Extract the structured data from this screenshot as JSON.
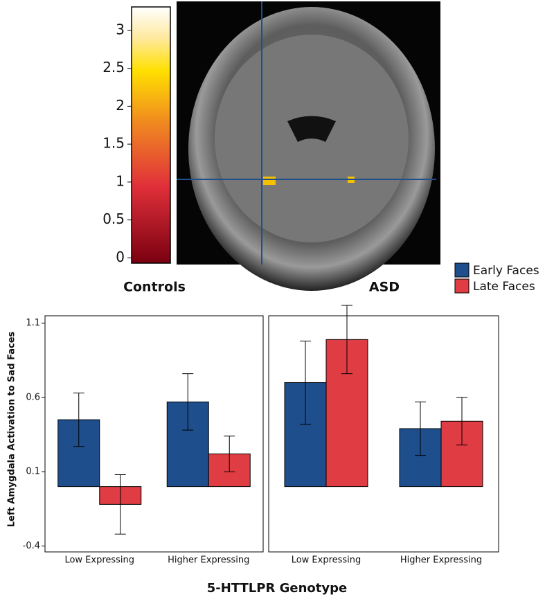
{
  "colorbar": {
    "lim": [
      -0.07,
      3.31
    ],
    "ticks": [
      0,
      0.5,
      1,
      1.5,
      2,
      2.5,
      3
    ]
  },
  "chart_data": [
    {
      "type": "bar",
      "title": "Controls",
      "ylabel": "Left Amygdala Activation to Sad Faces",
      "xlabel": "5-HTTLPR Genotype",
      "categories": [
        "Low Expressing",
        "Higher Expressing"
      ],
      "series": [
        {
          "name": "Early Faces",
          "color": "#1f4e8c",
          "values": [
            0.45,
            0.57
          ],
          "errors": [
            0.18,
            0.19
          ]
        },
        {
          "name": "Late Faces",
          "color": "#e03c44",
          "values": [
            -0.12,
            0.22
          ],
          "errors": [
            0.2,
            0.12
          ]
        }
      ],
      "ylim": [
        -0.44,
        1.15
      ],
      "yticks": [
        -0.4,
        0.1,
        0.6,
        1.1
      ],
      "legend": "top-right"
    },
    {
      "type": "bar",
      "title": "ASD",
      "categories": [
        "Low Expressing",
        "Higher Expressing"
      ],
      "series": [
        {
          "name": "Early Faces",
          "color": "#1f4e8c",
          "values": [
            0.7,
            0.39
          ],
          "errors": [
            0.28,
            0.18
          ]
        },
        {
          "name": "Late Faces",
          "color": "#e03c44",
          "values": [
            0.99,
            0.44
          ],
          "errors": [
            0.23,
            0.16
          ]
        }
      ]
    }
  ]
}
